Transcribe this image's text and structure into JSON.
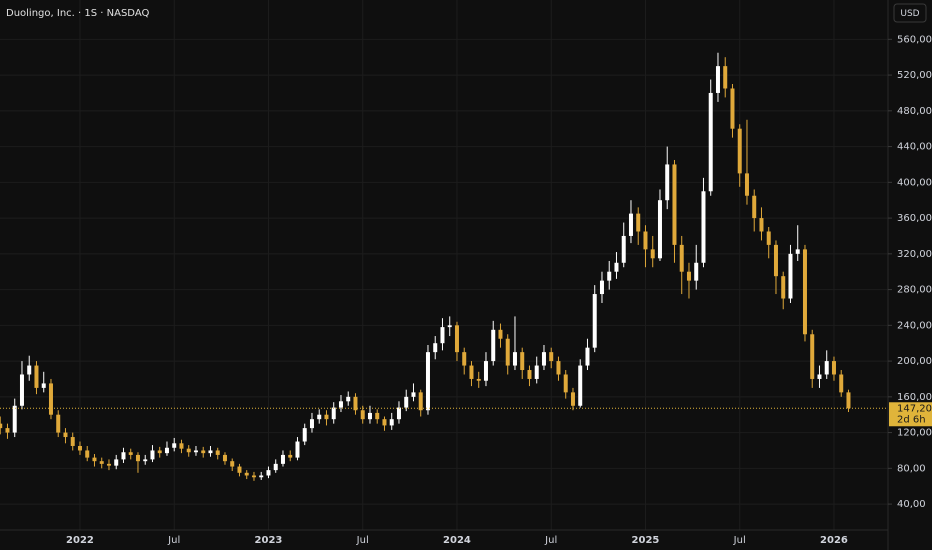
{
  "chart_data": {
    "type": "candlestick",
    "title": "Duolingo, Inc. · 1S · NASDAQ",
    "currency": "USD",
    "countdown": "2d 6h",
    "last_price": {
      "value": 147.2,
      "label": "147,20"
    },
    "up_color": "#ffffff",
    "down_color": "#e0a93a",
    "last_color": "#e0b43a",
    "grid": true,
    "categories": [
      null,
      null,
      null,
      null,
      null,
      null,
      null,
      null,
      null,
      null,
      null,
      "2022",
      null,
      null,
      null,
      null,
      null,
      null,
      null,
      null,
      null,
      null,
      null,
      null,
      "Jul",
      null,
      null,
      null,
      null,
      null,
      null,
      null,
      null,
      null,
      null,
      null,
      null,
      "2023",
      null,
      null,
      null,
      null,
      null,
      null,
      null,
      null,
      null,
      null,
      null,
      null,
      "Jul",
      null,
      null,
      null,
      null,
      null,
      null,
      null,
      null,
      null,
      null,
      null,
      null,
      "2024",
      null,
      null,
      null,
      null,
      null,
      null,
      null,
      null,
      null,
      null,
      null,
      null,
      "Jul",
      null,
      null,
      null,
      null,
      null,
      null,
      null,
      null,
      null,
      null,
      null,
      null,
      "2025",
      null,
      null,
      null,
      null,
      null,
      null,
      null,
      null,
      null,
      null,
      null,
      null,
      "Jul",
      null,
      null,
      null,
      null,
      null,
      null,
      null,
      null,
      null,
      null,
      null,
      null,
      "2026",
      null,
      null
    ],
    "open": [
      130,
      125,
      120,
      150,
      185,
      195,
      170,
      175,
      140,
      120,
      115,
      105,
      100,
      92,
      88,
      85,
      83,
      90,
      98,
      95,
      88,
      90,
      100,
      97,
      103,
      108,
      102,
      98,
      100,
      97,
      100,
      95,
      88,
      82,
      75,
      72,
      70,
      72,
      78,
      85,
      95,
      92,
      110,
      125,
      135,
      140,
      135,
      148,
      155,
      160,
      145,
      135,
      142,
      135,
      128,
      135,
      148,
      160,
      165,
      145,
      210,
      220,
      238,
      240,
      210,
      195,
      180,
      178,
      200,
      235,
      225,
      195,
      210,
      190,
      180,
      195,
      210,
      200,
      185,
      165,
      150,
      195,
      215,
      275,
      290,
      300,
      310,
      340,
      365,
      345,
      325,
      315,
      380,
      420,
      330,
      300,
      290,
      310,
      390,
      500,
      530,
      505,
      460,
      410,
      385,
      360,
      345,
      330,
      295,
      270,
      320,
      325,
      230,
      180,
      185,
      200,
      185,
      165
    ],
    "high": [
      138,
      130,
      158,
      200,
      206,
      200,
      188,
      180,
      145,
      125,
      120,
      110,
      105,
      96,
      92,
      90,
      95,
      103,
      102,
      98,
      95,
      106,
      104,
      110,
      114,
      112,
      106,
      105,
      104,
      105,
      103,
      98,
      91,
      85,
      78,
      76,
      76,
      82,
      90,
      100,
      100,
      115,
      130,
      142,
      146,
      145,
      154,
      162,
      166,
      164,
      150,
      150,
      146,
      138,
      142,
      155,
      168,
      175,
      168,
      218,
      228,
      248,
      250,
      244,
      215,
      200,
      188,
      210,
      245,
      242,
      230,
      250,
      215,
      195,
      205,
      218,
      215,
      205,
      190,
      170,
      202,
      225,
      285,
      300,
      312,
      322,
      355,
      380,
      372,
      352,
      340,
      392,
      440,
      425,
      340,
      310,
      330,
      405,
      515,
      545,
      540,
      510,
      465,
      470,
      392,
      372,
      350,
      335,
      300,
      330,
      352,
      330,
      235,
      195,
      212,
      205,
      190,
      168
    ],
    "low": [
      118,
      113,
      115,
      146,
      178,
      163,
      165,
      135,
      115,
      108,
      100,
      95,
      88,
      82,
      80,
      78,
      79,
      86,
      90,
      75,
      84,
      87,
      92,
      94,
      99,
      97,
      93,
      94,
      92,
      93,
      90,
      84,
      77,
      71,
      68,
      66,
      67,
      69,
      75,
      82,
      88,
      89,
      106,
      120,
      130,
      128,
      130,
      143,
      150,
      140,
      130,
      130,
      130,
      122,
      123,
      130,
      144,
      155,
      138,
      140,
      202,
      212,
      228,
      200,
      185,
      172,
      170,
      172,
      195,
      215,
      185,
      190,
      180,
      172,
      175,
      190,
      192,
      178,
      158,
      145,
      148,
      190,
      210,
      265,
      280,
      292,
      305,
      332,
      330,
      305,
      305,
      312,
      370,
      310,
      275,
      270,
      280,
      305,
      385,
      490,
      495,
      450,
      395,
      375,
      345,
      335,
      315,
      275,
      258,
      265,
      312,
      222,
      170,
      170,
      180,
      178,
      160,
      143
    ],
    "close": [
      125,
      120,
      150,
      185,
      195,
      170,
      175,
      140,
      120,
      115,
      105,
      100,
      92,
      88,
      85,
      83,
      90,
      98,
      95,
      88,
      90,
      100,
      97,
      103,
      108,
      102,
      98,
      100,
      97,
      100,
      95,
      88,
      82,
      75,
      72,
      70,
      72,
      78,
      85,
      95,
      92,
      110,
      125,
      135,
      140,
      135,
      148,
      155,
      160,
      145,
      135,
      142,
      135,
      128,
      135,
      148,
      160,
      165,
      145,
      210,
      220,
      238,
      240,
      210,
      195,
      180,
      178,
      200,
      235,
      225,
      195,
      210,
      190,
      180,
      195,
      210,
      200,
      185,
      165,
      150,
      195,
      215,
      275,
      290,
      300,
      310,
      340,
      365,
      345,
      325,
      315,
      380,
      420,
      330,
      300,
      290,
      310,
      390,
      500,
      530,
      505,
      460,
      410,
      385,
      360,
      345,
      330,
      295,
      270,
      320,
      325,
      230,
      180,
      185,
      200,
      185,
      165,
      147.2
    ],
    "ylim": [
      11,
      604
    ],
    "yticks": [
      {
        "value": 40,
        "label": "40,00"
      },
      {
        "value": 80,
        "label": "80,00"
      },
      {
        "value": 120,
        "label": "120,00"
      },
      {
        "value": 160,
        "label": "160,00"
      },
      {
        "value": 200,
        "label": "200,00"
      },
      {
        "value": 240,
        "label": "240,00"
      },
      {
        "value": 280,
        "label": "280,00"
      },
      {
        "value": 320,
        "label": "320,00"
      },
      {
        "value": 360,
        "label": "360,00"
      },
      {
        "value": 400,
        "label": "400,00"
      },
      {
        "value": 440,
        "label": "440,00"
      },
      {
        "value": 480,
        "label": "480,00"
      },
      {
        "value": 520,
        "label": "520,00"
      },
      {
        "value": 560,
        "label": "560,00"
      }
    ]
  }
}
